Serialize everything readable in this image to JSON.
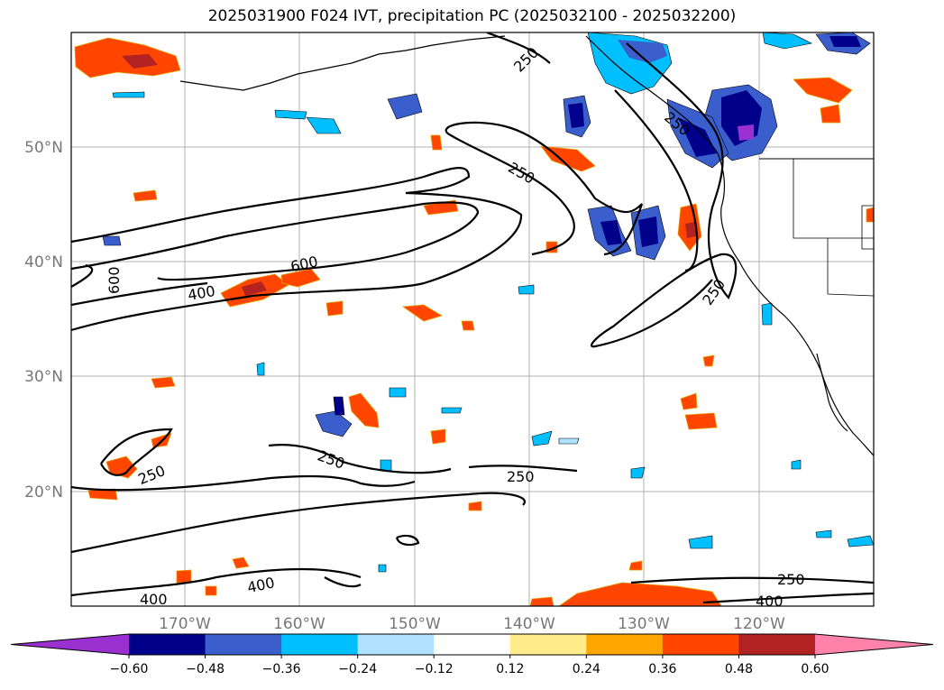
{
  "title": "2025031900 F024 IVT, precipitation PC (2025032100 - 2025032200)",
  "map": {
    "lon_ticks": [
      "170°W",
      "160°W",
      "150°W",
      "140°W",
      "130°W",
      "120°W"
    ],
    "lat_ticks": [
      "50°N",
      "40°N",
      "30°N",
      "20°N"
    ]
  },
  "contour_labels": [
    "250",
    "250",
    "250",
    "250",
    "250",
    "250",
    "250",
    "250",
    "600",
    "600",
    "400",
    "400",
    "400",
    "400"
  ],
  "colorbar": {
    "ticks": [
      "−0.60",
      "−0.48",
      "−0.36",
      "−0.24",
      "−0.12",
      "0.12",
      "0.24",
      "0.36",
      "0.48",
      "0.60"
    ],
    "colors": [
      "#9b30d0",
      "#00008b",
      "#3a5fcd",
      "#00bfff",
      "#b0e2ff",
      "#ffffff",
      "#ffec8b",
      "#ffa500",
      "#ff4500",
      "#b22222",
      "#ff82ab"
    ]
  }
}
